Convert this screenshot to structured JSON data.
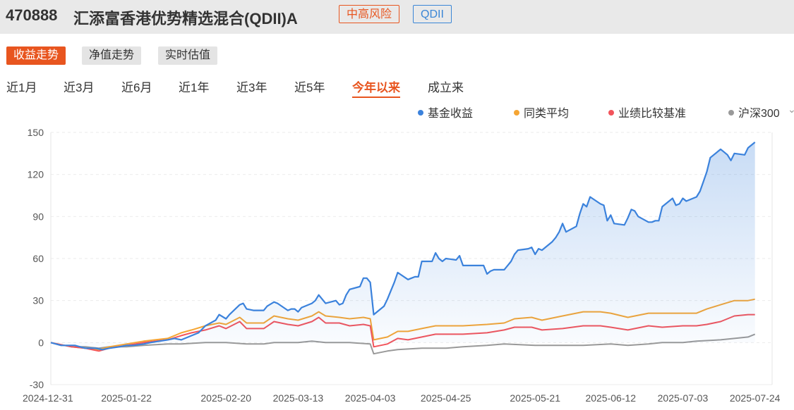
{
  "fund": {
    "code": "470888",
    "name": "汇添富香港优势精选混合(QDII)A",
    "risk_tag": "中高风险",
    "type_tag": "QDII"
  },
  "modes": [
    "收益走势",
    "净值走势",
    "实时估值"
  ],
  "active_mode": 0,
  "periods": [
    "近1月",
    "近3月",
    "近6月",
    "近1年",
    "近3年",
    "近5年",
    "今年以来",
    "成立来"
  ],
  "active_period": 6,
  "legend_more_icon": "chevron-down-icon",
  "colors": {
    "accent": "#e8551f",
    "fund": "#3b82dc",
    "peer": "#f5a533",
    "benchmark": "#f2545b",
    "index": "#999999"
  },
  "chart_data": {
    "type": "line",
    "ylim": [
      -30,
      150
    ],
    "yticks": [
      150,
      120,
      90,
      60,
      30,
      0,
      -30
    ],
    "xlim": [
      "2024-12-31",
      "2025-07-29"
    ],
    "xticks": [
      "2024-12-31",
      "2025-01-22",
      "2025-02-20",
      "2025-03-13",
      "2025-04-03",
      "2025-04-25",
      "2025-05-21",
      "2025-06-12",
      "2025-07-03",
      "2025-07-24"
    ],
    "grid": true,
    "legend_position": "top-right",
    "series": [
      {
        "name": "基金收益",
        "color": "#3b82dc",
        "fill": true,
        "points": [
          [
            "2024-12-31",
            0
          ],
          [
            "2025-01-03",
            -2
          ],
          [
            "2025-01-07",
            -2
          ],
          [
            "2025-01-10",
            -4
          ],
          [
            "2025-01-13",
            -4
          ],
          [
            "2025-01-15",
            -5
          ],
          [
            "2025-01-17",
            -4
          ],
          [
            "2025-01-20",
            -3
          ],
          [
            "2025-01-22",
            -2
          ],
          [
            "2025-01-24",
            -2
          ],
          [
            "2025-01-27",
            -1
          ],
          [
            "2025-01-29",
            0
          ],
          [
            "2025-02-03",
            2
          ],
          [
            "2025-02-05",
            3
          ],
          [
            "2025-02-07",
            2
          ],
          [
            "2025-02-10",
            5
          ],
          [
            "2025-02-12",
            7
          ],
          [
            "2025-02-14",
            12
          ],
          [
            "2025-02-17",
            16
          ],
          [
            "2025-02-18",
            20
          ],
          [
            "2025-02-20",
            17
          ],
          [
            "2025-02-21",
            20
          ],
          [
            "2025-02-24",
            27
          ],
          [
            "2025-02-25",
            28
          ],
          [
            "2025-02-26",
            24
          ],
          [
            "2025-02-28",
            23
          ],
          [
            "2025-03-03",
            23
          ],
          [
            "2025-03-04",
            26
          ],
          [
            "2025-03-06",
            29
          ],
          [
            "2025-03-07",
            28
          ],
          [
            "2025-03-10",
            23
          ],
          [
            "2025-03-11",
            24
          ],
          [
            "2025-03-12",
            24
          ],
          [
            "2025-03-13",
            22
          ],
          [
            "2025-03-14",
            25
          ],
          [
            "2025-03-17",
            28
          ],
          [
            "2025-03-18",
            30
          ],
          [
            "2025-03-19",
            34
          ],
          [
            "2025-03-20",
            31
          ],
          [
            "2025-03-21",
            28
          ],
          [
            "2025-03-24",
            30
          ],
          [
            "2025-03-25",
            27
          ],
          [
            "2025-03-26",
            28
          ],
          [
            "2025-03-27",
            34
          ],
          [
            "2025-03-28",
            38
          ],
          [
            "2025-03-31",
            40
          ],
          [
            "2025-04-01",
            46
          ],
          [
            "2025-04-02",
            46
          ],
          [
            "2025-04-03",
            43
          ],
          [
            "2025-04-04",
            20
          ],
          [
            "2025-04-07",
            26
          ],
          [
            "2025-04-08",
            31
          ],
          [
            "2025-04-09",
            37
          ],
          [
            "2025-04-10",
            43
          ],
          [
            "2025-04-11",
            50
          ],
          [
            "2025-04-14",
            45
          ],
          [
            "2025-04-15",
            46
          ],
          [
            "2025-04-16",
            47
          ],
          [
            "2025-04-17",
            47
          ],
          [
            "2025-04-18",
            58
          ],
          [
            "2025-04-21",
            58
          ],
          [
            "2025-04-22",
            64
          ],
          [
            "2025-04-23",
            60
          ],
          [
            "2025-04-24",
            58
          ],
          [
            "2025-04-25",
            60
          ],
          [
            "2025-04-28",
            59
          ],
          [
            "2025-04-29",
            62
          ],
          [
            "2025-04-30",
            55
          ],
          [
            "2025-05-02",
            55
          ],
          [
            "2025-05-06",
            55
          ],
          [
            "2025-05-07",
            49
          ],
          [
            "2025-05-08",
            51
          ],
          [
            "2025-05-09",
            52
          ],
          [
            "2025-05-12",
            52
          ],
          [
            "2025-05-13",
            55
          ],
          [
            "2025-05-14",
            58
          ],
          [
            "2025-05-15",
            63
          ],
          [
            "2025-05-16",
            66
          ],
          [
            "2025-05-19",
            67
          ],
          [
            "2025-05-20",
            68
          ],
          [
            "2025-05-21",
            63
          ],
          [
            "2025-05-22",
            67
          ],
          [
            "2025-05-23",
            66
          ],
          [
            "2025-05-26",
            72
          ],
          [
            "2025-05-27",
            75
          ],
          [
            "2025-05-28",
            79
          ],
          [
            "2025-05-29",
            85
          ],
          [
            "2025-05-30",
            79
          ],
          [
            "2025-06-02",
            83
          ],
          [
            "2025-06-03",
            92
          ],
          [
            "2025-06-04",
            99
          ],
          [
            "2025-06-05",
            97
          ],
          [
            "2025-06-06",
            104
          ],
          [
            "2025-06-09",
            99
          ],
          [
            "2025-06-10",
            98
          ],
          [
            "2025-06-11",
            87
          ],
          [
            "2025-06-12",
            91
          ],
          [
            "2025-06-13",
            85
          ],
          [
            "2025-06-16",
            84
          ],
          [
            "2025-06-17",
            89
          ],
          [
            "2025-06-18",
            95
          ],
          [
            "2025-06-19",
            94
          ],
          [
            "2025-06-20",
            90
          ],
          [
            "2025-06-23",
            86
          ],
          [
            "2025-06-24",
            86
          ],
          [
            "2025-06-25",
            87
          ],
          [
            "2025-06-26",
            87
          ],
          [
            "2025-06-27",
            97
          ],
          [
            "2025-06-30",
            103
          ],
          [
            "2025-07-01",
            98
          ],
          [
            "2025-07-02",
            99
          ],
          [
            "2025-07-03",
            103
          ],
          [
            "2025-07-04",
            101
          ],
          [
            "2025-07-07",
            104
          ],
          [
            "2025-07-08",
            108
          ],
          [
            "2025-07-09",
            115
          ],
          [
            "2025-07-10",
            122
          ],
          [
            "2025-07-11",
            132
          ],
          [
            "2025-07-14",
            138
          ],
          [
            "2025-07-15",
            136
          ],
          [
            "2025-07-16",
            134
          ],
          [
            "2025-07-17",
            130
          ],
          [
            "2025-07-18",
            135
          ],
          [
            "2025-07-21",
            134
          ],
          [
            "2025-07-22",
            139
          ],
          [
            "2025-07-24",
            143
          ]
        ]
      },
      {
        "name": "同类平均",
        "color": "#f5a533",
        "fill": false,
        "points": [
          [
            "2024-12-31",
            0
          ],
          [
            "2025-01-06",
            -3
          ],
          [
            "2025-01-10",
            -4
          ],
          [
            "2025-01-14",
            -5
          ],
          [
            "2025-01-17",
            -3
          ],
          [
            "2025-01-22",
            -1
          ],
          [
            "2025-01-27",
            1
          ],
          [
            "2025-02-03",
            3
          ],
          [
            "2025-02-07",
            7
          ],
          [
            "2025-02-10",
            9
          ],
          [
            "2025-02-14",
            12
          ],
          [
            "2025-02-18",
            14
          ],
          [
            "2025-02-20",
            13
          ],
          [
            "2025-02-24",
            18
          ],
          [
            "2025-02-26",
            14
          ],
          [
            "2025-03-03",
            14
          ],
          [
            "2025-03-06",
            19
          ],
          [
            "2025-03-10",
            17
          ],
          [
            "2025-03-13",
            16
          ],
          [
            "2025-03-17",
            19
          ],
          [
            "2025-03-19",
            22
          ],
          [
            "2025-03-21",
            19
          ],
          [
            "2025-03-25",
            18
          ],
          [
            "2025-03-28",
            17
          ],
          [
            "2025-04-01",
            18
          ],
          [
            "2025-04-03",
            17
          ],
          [
            "2025-04-04",
            2
          ],
          [
            "2025-04-08",
            4
          ],
          [
            "2025-04-11",
            8
          ],
          [
            "2025-04-14",
            8
          ],
          [
            "2025-04-18",
            10
          ],
          [
            "2025-04-22",
            12
          ],
          [
            "2025-04-25",
            12
          ],
          [
            "2025-04-30",
            12
          ],
          [
            "2025-05-07",
            13
          ],
          [
            "2025-05-12",
            14
          ],
          [
            "2025-05-15",
            17
          ],
          [
            "2025-05-20",
            18
          ],
          [
            "2025-05-23",
            16
          ],
          [
            "2025-05-29",
            19
          ],
          [
            "2025-06-04",
            22
          ],
          [
            "2025-06-09",
            22
          ],
          [
            "2025-06-12",
            21
          ],
          [
            "2025-06-17",
            18
          ],
          [
            "2025-06-23",
            21
          ],
          [
            "2025-06-27",
            21
          ],
          [
            "2025-07-03",
            21
          ],
          [
            "2025-07-07",
            21
          ],
          [
            "2025-07-10",
            24
          ],
          [
            "2025-07-14",
            27
          ],
          [
            "2025-07-18",
            30
          ],
          [
            "2025-07-22",
            30
          ],
          [
            "2025-07-24",
            31
          ]
        ]
      },
      {
        "name": "业绩比较基准",
        "color": "#f2545b",
        "fill": false,
        "points": [
          [
            "2024-12-31",
            0
          ],
          [
            "2025-01-06",
            -3
          ],
          [
            "2025-01-10",
            -4
          ],
          [
            "2025-01-14",
            -6
          ],
          [
            "2025-01-17",
            -4
          ],
          [
            "2025-01-22",
            -2
          ],
          [
            "2025-01-27",
            0
          ],
          [
            "2025-02-03",
            2
          ],
          [
            "2025-02-07",
            5
          ],
          [
            "2025-02-10",
            7
          ],
          [
            "2025-02-14",
            9
          ],
          [
            "2025-02-18",
            12
          ],
          [
            "2025-02-20",
            10
          ],
          [
            "2025-02-24",
            15
          ],
          [
            "2025-02-26",
            10
          ],
          [
            "2025-03-03",
            10
          ],
          [
            "2025-03-06",
            15
          ],
          [
            "2025-03-10",
            13
          ],
          [
            "2025-03-13",
            12
          ],
          [
            "2025-03-17",
            15
          ],
          [
            "2025-03-19",
            18
          ],
          [
            "2025-03-21",
            14
          ],
          [
            "2025-03-25",
            14
          ],
          [
            "2025-03-28",
            12
          ],
          [
            "2025-04-01",
            13
          ],
          [
            "2025-04-03",
            12
          ],
          [
            "2025-04-04",
            -3
          ],
          [
            "2025-04-08",
            -1
          ],
          [
            "2025-04-11",
            3
          ],
          [
            "2025-04-14",
            2
          ],
          [
            "2025-04-18",
            4
          ],
          [
            "2025-04-22",
            6
          ],
          [
            "2025-04-25",
            6
          ],
          [
            "2025-04-30",
            6
          ],
          [
            "2025-05-07",
            7
          ],
          [
            "2025-05-12",
            9
          ],
          [
            "2025-05-15",
            11
          ],
          [
            "2025-05-20",
            11
          ],
          [
            "2025-05-23",
            9
          ],
          [
            "2025-05-29",
            10
          ],
          [
            "2025-06-04",
            12
          ],
          [
            "2025-06-09",
            12
          ],
          [
            "2025-06-12",
            11
          ],
          [
            "2025-06-17",
            9
          ],
          [
            "2025-06-23",
            12
          ],
          [
            "2025-06-27",
            11
          ],
          [
            "2025-07-03",
            12
          ],
          [
            "2025-07-07",
            12
          ],
          [
            "2025-07-10",
            13
          ],
          [
            "2025-07-14",
            15
          ],
          [
            "2025-07-18",
            19
          ],
          [
            "2025-07-22",
            20
          ],
          [
            "2025-07-24",
            20
          ]
        ]
      },
      {
        "name": "沪深300",
        "color": "#999999",
        "fill": false,
        "points": [
          [
            "2024-12-31",
            0
          ],
          [
            "2025-01-06",
            -3
          ],
          [
            "2025-01-10",
            -3
          ],
          [
            "2025-01-14",
            -4
          ],
          [
            "2025-01-17",
            -3
          ],
          [
            "2025-01-22",
            -3
          ],
          [
            "2025-01-27",
            -2
          ],
          [
            "2025-02-03",
            -1
          ],
          [
            "2025-02-07",
            -1
          ],
          [
            "2025-02-14",
            0
          ],
          [
            "2025-02-20",
            0
          ],
          [
            "2025-02-26",
            -1
          ],
          [
            "2025-03-03",
            -1
          ],
          [
            "2025-03-06",
            0
          ],
          [
            "2025-03-13",
            0
          ],
          [
            "2025-03-17",
            1
          ],
          [
            "2025-03-21",
            0
          ],
          [
            "2025-03-28",
            0
          ],
          [
            "2025-04-03",
            -1
          ],
          [
            "2025-04-04",
            -8
          ],
          [
            "2025-04-08",
            -6
          ],
          [
            "2025-04-11",
            -5
          ],
          [
            "2025-04-18",
            -4
          ],
          [
            "2025-04-25",
            -4
          ],
          [
            "2025-04-30",
            -3
          ],
          [
            "2025-05-07",
            -2
          ],
          [
            "2025-05-12",
            -1
          ],
          [
            "2025-05-21",
            -2
          ],
          [
            "2025-05-29",
            -2
          ],
          [
            "2025-06-04",
            -2
          ],
          [
            "2025-06-12",
            -1
          ],
          [
            "2025-06-17",
            -2
          ],
          [
            "2025-06-23",
            -1
          ],
          [
            "2025-06-27",
            0
          ],
          [
            "2025-07-03",
            0
          ],
          [
            "2025-07-07",
            1
          ],
          [
            "2025-07-14",
            2
          ],
          [
            "2025-07-18",
            3
          ],
          [
            "2025-07-22",
            4
          ],
          [
            "2025-07-24",
            6
          ]
        ]
      }
    ]
  }
}
